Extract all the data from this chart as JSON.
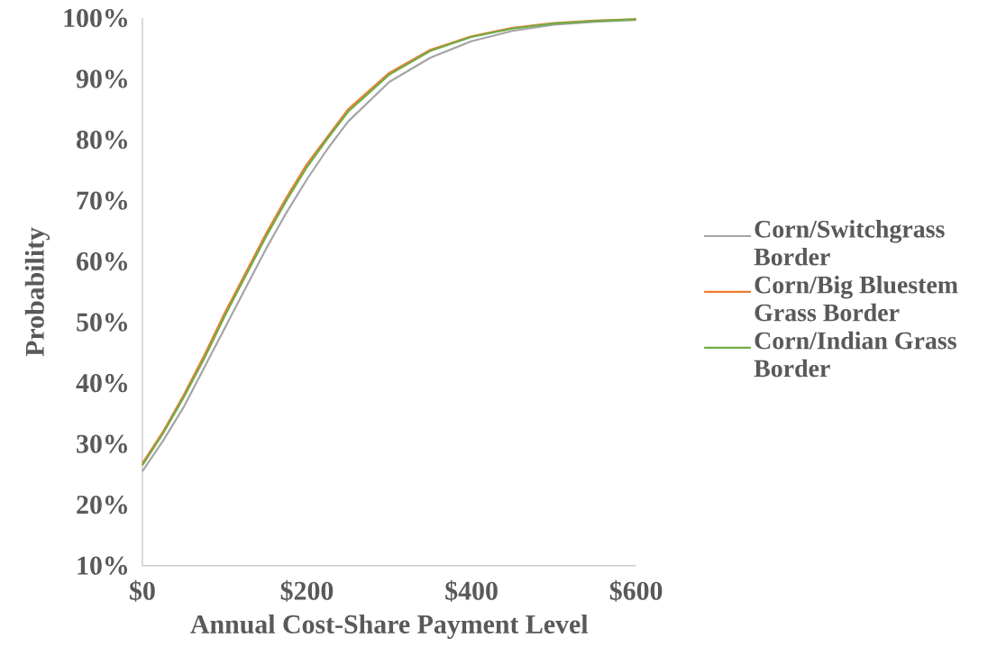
{
  "chart_data": {
    "type": "line",
    "xlabel": "Annual Cost-Share Payment Level",
    "ylabel": "Probability",
    "x": [
      0,
      25,
      50,
      75,
      100,
      125,
      150,
      175,
      200,
      225,
      250,
      300,
      350,
      400,
      450,
      500,
      550,
      600
    ],
    "series": [
      {
        "name": "Corn/Switchgrass Border",
        "color": "#a5a5a5",
        "values": [
          25.5,
          30.5,
          36,
          42.5,
          49,
          55.5,
          62,
          68,
          73.5,
          78.5,
          83,
          89.5,
          93.5,
          96.2,
          97.9,
          98.9,
          99.4,
          99.7
        ]
      },
      {
        "name": "Corn/Big Bluestem Grass Border",
        "color": "#ed7d31",
        "values": [
          26.8,
          32,
          38,
          44.5,
          51.5,
          58,
          64.5,
          70.5,
          76,
          80.5,
          85,
          91,
          94.8,
          97,
          98.4,
          99.2,
          99.6,
          99.8
        ]
      },
      {
        "name": "Corn/Indian Grass Border",
        "color": "#70ad47",
        "values": [
          26.5,
          31.7,
          37.6,
          44,
          51,
          57.5,
          64,
          70,
          75.5,
          80.2,
          84.6,
          90.7,
          94.6,
          96.9,
          98.3,
          99.1,
          99.5,
          99.8
        ]
      }
    ],
    "xlim": [
      0,
      600
    ],
    "ylim": [
      10,
      100
    ],
    "xticks": [
      {
        "value": 0,
        "label": "$0"
      },
      {
        "value": 200,
        "label": "$200"
      },
      {
        "value": 400,
        "label": "$400"
      },
      {
        "value": 600,
        "label": "$600"
      }
    ],
    "yticks": [
      {
        "value": 10,
        "label": "10%"
      },
      {
        "value": 20,
        "label": "20%"
      },
      {
        "value": 30,
        "label": "30%"
      },
      {
        "value": 40,
        "label": "40%"
      },
      {
        "value": 50,
        "label": "50%"
      },
      {
        "value": 60,
        "label": "60%"
      },
      {
        "value": 70,
        "label": "70%"
      },
      {
        "value": 80,
        "label": "80%"
      },
      {
        "value": 90,
        "label": "90%"
      },
      {
        "value": 100,
        "label": "100%"
      }
    ],
    "legend": "right"
  }
}
